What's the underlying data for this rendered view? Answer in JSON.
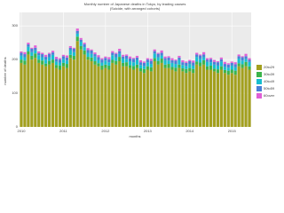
{
  "chart_data": {
    "type": "stacked-bar",
    "title": "Monthly number of Japanese deaths in Tokyo, by leading causes",
    "subtitle": "(Suicide, with arranged cohorts)",
    "x_label": "months",
    "y_label": "number of deaths",
    "categories": [
      "2010",
      null,
      null,
      null,
      null,
      null,
      null,
      null,
      null,
      null,
      null,
      null,
      "2011",
      null,
      null,
      null,
      null,
      null,
      null,
      null,
      null,
      null,
      null,
      null,
      "2012",
      null,
      null,
      null,
      null,
      null,
      null,
      null,
      null,
      null,
      null,
      null,
      "2013",
      null,
      null,
      null,
      null,
      null,
      null,
      null,
      null,
      null,
      null,
      null,
      "2014",
      null,
      null,
      null,
      null,
      null,
      null,
      null,
      null,
      null,
      null,
      null,
      "2015",
      null,
      null,
      null,
      null,
      null
    ],
    "series": [
      {
        "name": "20to29",
        "color": "#a3a01e",
        "values": [
          190,
          185,
          215,
          200,
          205,
          190,
          185,
          180,
          185,
          190,
          175,
          170,
          180,
          175,
          205,
          200,
          255,
          230,
          215,
          200,
          195,
          185,
          180,
          170,
          175,
          170,
          190,
          185,
          195,
          180,
          180,
          175,
          170,
          175,
          165,
          160,
          170,
          165,
          195,
          185,
          190,
          175,
          175,
          170,
          165,
          175,
          165,
          160,
          165,
          160,
          185,
          180,
          185,
          170,
          170,
          165,
          160,
          170,
          160,
          155,
          160,
          155,
          180,
          175,
          180,
          170
        ]
      },
      {
        "name": "30to39",
        "color": "#3cb44b",
        "values": [
          10,
          12,
          9,
          11,
          13,
          10,
          12,
          8,
          11,
          10,
          9,
          12,
          10,
          12,
          9,
          11,
          13,
          10,
          12,
          8,
          11,
          10,
          9,
          12,
          10,
          12,
          9,
          11,
          13,
          10,
          12,
          8,
          11,
          10,
          9,
          12,
          10,
          12,
          9,
          11,
          13,
          10,
          12,
          8,
          11,
          10,
          9,
          12,
          10,
          12,
          9,
          11,
          13,
          10,
          12,
          8,
          11,
          10,
          9,
          12,
          10,
          12,
          9,
          11,
          13,
          10
        ]
      },
      {
        "name": "40to49",
        "color": "#17becf",
        "values": [
          12,
          10,
          14,
          11,
          9,
          13,
          10,
          12,
          11,
          14,
          10,
          9,
          12,
          10,
          14,
          11,
          9,
          13,
          10,
          12,
          11,
          14,
          10,
          9,
          12,
          10,
          14,
          11,
          9,
          13,
          10,
          12,
          11,
          14,
          10,
          9,
          12,
          10,
          14,
          11,
          9,
          13,
          10,
          12,
          11,
          14,
          10,
          9,
          12,
          10,
          14,
          11,
          9,
          13,
          10,
          12,
          11,
          14,
          10,
          9,
          12,
          10,
          14,
          11,
          9,
          13
        ]
      },
      {
        "name": "50to59",
        "color": "#4a7fd6",
        "values": [
          8,
          9,
          7,
          10,
          8,
          6,
          9,
          8,
          10,
          7,
          8,
          9,
          8,
          9,
          7,
          10,
          8,
          6,
          9,
          8,
          10,
          7,
          8,
          9,
          8,
          9,
          7,
          10,
          8,
          6,
          9,
          8,
          10,
          7,
          8,
          9,
          8,
          9,
          7,
          10,
          8,
          6,
          9,
          8,
          10,
          7,
          8,
          9,
          8,
          9,
          7,
          10,
          8,
          6,
          9,
          8,
          10,
          7,
          8,
          9,
          8,
          9,
          7,
          10,
          8,
          6
        ]
      },
      {
        "name": "60over",
        "color": "#e05fd6",
        "values": [
          4,
          6,
          5,
          3,
          7,
          5,
          4,
          6,
          3,
          5,
          6,
          4,
          4,
          6,
          5,
          3,
          7,
          5,
          4,
          6,
          3,
          5,
          6,
          4,
          4,
          6,
          5,
          3,
          7,
          5,
          4,
          6,
          3,
          5,
          6,
          4,
          4,
          6,
          5,
          3,
          7,
          5,
          4,
          6,
          3,
          5,
          6,
          4,
          4,
          6,
          5,
          3,
          7,
          5,
          4,
          6,
          3,
          5,
          6,
          4,
          4,
          6,
          5,
          3,
          7,
          5
        ]
      }
    ],
    "ylim": [
      0,
      340
    ],
    "yticks": [
      0,
      100,
      200,
      300
    ],
    "grid": true
  }
}
